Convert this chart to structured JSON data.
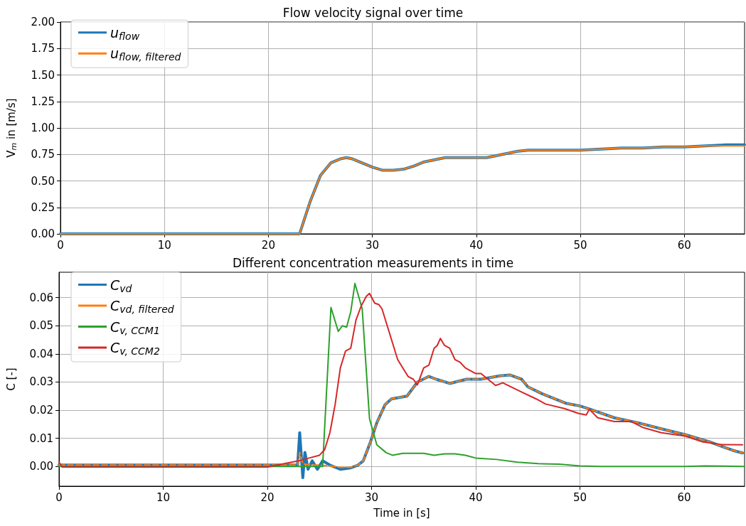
{
  "chart_data": [
    {
      "type": "line",
      "title": "Flow velocity signal over time",
      "ylabel": "V$_{m}$ in [m/s]",
      "xlim": [
        0,
        65.8
      ],
      "ylim": [
        0,
        2
      ],
      "xticks": [
        0,
        10,
        20,
        30,
        40,
        50,
        60
      ],
      "yticks": [
        {
          "value": 0,
          "label": "0.00"
        },
        {
          "value": 0.25,
          "label": "0.25"
        },
        {
          "value": 0.5,
          "label": "0.50"
        },
        {
          "value": 0.75,
          "label": "0.75"
        },
        {
          "value": 1,
          "label": "1.00"
        },
        {
          "value": 1.25,
          "label": "1.25"
        },
        {
          "value": 1.5,
          "label": "1.50"
        },
        {
          "value": 1.75,
          "label": "1.75"
        },
        {
          "value": 2,
          "label": "2.00"
        }
      ],
      "grid": true,
      "legend": "top left",
      "marker": "none",
      "x": [
        0,
        10,
        20,
        23,
        24,
        25,
        26,
        27,
        27.5,
        28,
        29,
        30,
        31,
        32,
        33,
        34,
        35,
        36,
        37,
        38,
        39,
        40,
        41,
        42,
        43,
        44,
        45,
        46,
        48,
        50,
        52,
        54,
        56,
        58,
        60,
        62,
        64,
        65.8
      ],
      "series": [
        {
          "name": "u$_{flow}$",
          "color": "#1f77b4",
          "values": [
            0,
            0,
            0,
            0,
            0.3,
            0.55,
            0.67,
            0.71,
            0.72,
            0.71,
            0.67,
            0.63,
            0.6,
            0.6,
            0.61,
            0.64,
            0.68,
            0.7,
            0.72,
            0.72,
            0.72,
            0.72,
            0.72,
            0.74,
            0.76,
            0.78,
            0.79,
            0.79,
            0.79,
            0.79,
            0.8,
            0.81,
            0.81,
            0.82,
            0.82,
            0.83,
            0.84,
            0.84
          ]
        },
        {
          "name": "u$_{flow, filtered}$",
          "color": "#ff7f0e",
          "values": [
            0,
            0,
            0,
            0,
            0.3,
            0.55,
            0.67,
            0.71,
            0.72,
            0.71,
            0.67,
            0.63,
            0.6,
            0.6,
            0.61,
            0.64,
            0.68,
            0.7,
            0.72,
            0.72,
            0.72,
            0.72,
            0.72,
            0.74,
            0.76,
            0.78,
            0.79,
            0.79,
            0.79,
            0.79,
            0.8,
            0.81,
            0.81,
            0.82,
            0.82,
            0.83,
            0.83,
            0.83
          ]
        }
      ]
    },
    {
      "type": "line",
      "title": "Different concentration measurements in time",
      "xlabel": "Time in [s]",
      "ylabel": "C [-]",
      "xlim": [
        0,
        65.8
      ],
      "ylim": [
        -0.007,
        0.069
      ],
      "xticks": [
        0,
        10,
        20,
        30,
        40,
        50,
        60
      ],
      "yticks": [
        {
          "value": 0,
          "label": "0.00"
        },
        {
          "value": 0.01,
          "label": "0.01"
        },
        {
          "value": 0.02,
          "label": "0.02"
        },
        {
          "value": 0.03,
          "label": "0.03"
        },
        {
          "value": 0.04,
          "label": "0.04"
        },
        {
          "value": 0.05,
          "label": "0.05"
        },
        {
          "value": 0.06,
          "label": "0.06"
        }
      ],
      "grid": true,
      "legend": "top left",
      "marker": "none",
      "series": [
        {
          "name": "C$_{vd}$",
          "color": "#1f77b4",
          "line_style": "solid",
          "x": [
            0,
            10,
            20,
            22.9,
            23.1,
            23.4,
            23.6,
            23.9,
            24.3,
            24.8,
            25.3,
            26,
            27,
            28,
            28.7,
            29.2,
            29.9,
            30.5,
            31.3,
            31.9,
            33.4,
            34.4,
            35.5,
            36.2,
            37.5,
            39.1,
            40.5,
            42.3,
            43.3,
            44.4,
            45,
            46.4,
            48.7,
            50,
            51,
            53.3,
            55.6,
            57.8,
            60.1,
            62.4,
            64.7,
            65.6
          ],
          "values": [
            0.0005,
            0.0005,
            0.0005,
            0.0005,
            0.012,
            -0.004,
            0.005,
            -0.001,
            0.002,
            -0.001,
            0.002,
            0.0005,
            -0.001,
            -0.0005,
            0.0005,
            0.002,
            0.0088,
            0.0155,
            0.022,
            0.024,
            0.025,
            0.03,
            0.032,
            0.031,
            0.0295,
            0.031,
            0.031,
            0.0322,
            0.0325,
            0.031,
            0.0283,
            0.0258,
            0.0224,
            0.0215,
            0.0203,
            0.0173,
            0.0155,
            0.0134,
            0.0113,
            0.0088,
            0.0057,
            0.0048
          ]
        },
        {
          "name": "C$_{vd, filtered}$",
          "color": "#ff7f0e",
          "line_style": "dashed",
          "x": [
            0,
            10,
            20,
            22.9,
            23.1,
            23.4,
            24,
            25,
            26,
            27,
            28,
            28.7,
            29.2,
            29.9,
            30.5,
            31.3,
            31.9,
            33.4,
            34.4,
            35.5,
            36.2,
            37.5,
            39.1,
            40.5,
            42.3,
            43.3,
            44.4,
            45,
            46.4,
            48.7,
            50,
            51,
            53.3,
            55.6,
            57.8,
            60.1,
            62.4,
            64.7,
            65.6
          ],
          "values": [
            0.0005,
            0.0005,
            0.0005,
            0.0005,
            0.005,
            0.001,
            0.0005,
            0.0005,
            0.0002,
            -0.0003,
            -0.0003,
            0.0005,
            0.002,
            0.0088,
            0.0155,
            0.022,
            0.024,
            0.025,
            0.03,
            0.032,
            0.031,
            0.0295,
            0.031,
            0.031,
            0.0322,
            0.0325,
            0.031,
            0.0283,
            0.0258,
            0.0224,
            0.0215,
            0.0203,
            0.0173,
            0.0155,
            0.0134,
            0.0113,
            0.0088,
            0.0057,
            0.0048
          ]
        },
        {
          "name": "C$_{v, CCM1}$",
          "color": "#2ca02c",
          "line_style": "solid",
          "x": [
            0,
            10,
            20,
            25.3,
            26.1,
            26.8,
            27.2,
            27.6,
            28,
            28.4,
            29.1,
            29.8,
            30.5,
            31.4,
            32,
            33,
            35,
            36,
            37,
            38,
            39,
            40,
            42,
            44,
            46,
            48,
            50,
            52,
            60,
            62,
            65.8
          ],
          "values": [
            0,
            0,
            0,
            0,
            0.0565,
            0.048,
            0.05,
            0.0495,
            0.055,
            0.065,
            0.056,
            0.017,
            0.0077,
            0.0049,
            0.004,
            0.0047,
            0.0047,
            0.004,
            0.0045,
            0.0045,
            0.004,
            0.003,
            0.0025,
            0.0015,
            0.001,
            0.0008,
            0.0002,
            0,
            0,
            0.0002,
            0
          ]
        },
        {
          "name": "C$_{v, CCM2}$",
          "color": "#d62728",
          "line_style": "solid",
          "x": [
            0,
            0.3,
            10,
            20,
            23,
            24,
            25,
            25.5,
            26,
            26.5,
            27,
            27.5,
            28,
            28.5,
            29,
            29.5,
            29.8,
            30.3,
            30.7,
            31,
            31.5,
            32,
            32.5,
            33,
            33.5,
            34,
            34.4,
            35,
            35.5,
            36,
            36.3,
            36.6,
            37,
            37.5,
            38,
            38.5,
            39,
            40,
            40.5,
            41.9,
            42.6,
            44.2,
            45.8,
            46.7,
            48.5,
            49.9,
            50.6,
            50.9,
            51.7,
            53.3,
            54.9,
            56,
            57.8,
            60.1,
            61.7,
            63.6,
            65.6
          ],
          "values": [
            0.0015,
            -0.0002,
            -0.0002,
            -0.0002,
            0.002,
            0.003,
            0.004,
            0.006,
            0.012,
            0.022,
            0.035,
            0.041,
            0.042,
            0.052,
            0.057,
            0.0605,
            0.0615,
            0.058,
            0.0575,
            0.056,
            0.05,
            0.044,
            0.038,
            0.035,
            0.032,
            0.031,
            0.029,
            0.035,
            0.036,
            0.042,
            0.043,
            0.0455,
            0.043,
            0.042,
            0.038,
            0.037,
            0.035,
            0.033,
            0.033,
            0.0288,
            0.0297,
            0.0268,
            0.024,
            0.0222,
            0.0206,
            0.0188,
            0.0183,
            0.0203,
            0.0173,
            0.016,
            0.016,
            0.0139,
            0.012,
            0.0108,
            0.0088,
            0.0078,
            0.0077
          ]
        }
      ]
    }
  ]
}
